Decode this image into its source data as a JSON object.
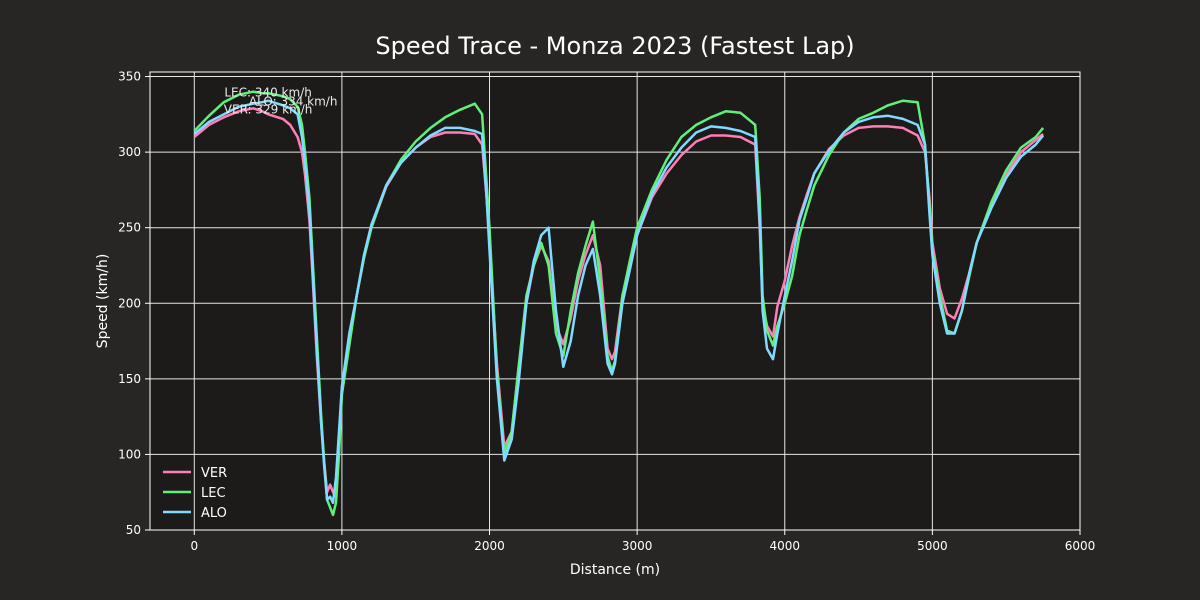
{
  "chart_data": {
    "type": "line",
    "title": "Speed Trace - Monza 2023 (Fastest Lap)",
    "xlabel": "Distance (m)",
    "ylabel": "Speed (km/h)",
    "xlim": [
      -300,
      6000
    ],
    "ylim": [
      50,
      353
    ],
    "xticks": [
      0,
      1000,
      2000,
      3000,
      4000,
      5000,
      6000
    ],
    "yticks": [
      50,
      100,
      150,
      200,
      250,
      300,
      350
    ],
    "grid": true,
    "legend_position": "lower-left",
    "series": [
      {
        "name": "VER",
        "color": "#ff7eb6",
        "x": [
          0,
          100,
          200,
          300,
          400,
          460,
          500,
          600,
          650,
          700,
          730,
          750,
          780,
          800,
          830,
          860,
          880,
          900,
          920,
          940,
          960,
          980,
          1000,
          1050,
          1100,
          1150,
          1200,
          1300,
          1400,
          1500,
          1600,
          1700,
          1800,
          1900,
          1950,
          1980,
          2000,
          2050,
          2100,
          2150,
          2200,
          2250,
          2300,
          2350,
          2400,
          2450,
          2500,
          2550,
          2600,
          2650,
          2700,
          2750,
          2800,
          2830,
          2850,
          2900,
          2950,
          3000,
          3100,
          3200,
          3300,
          3400,
          3500,
          3600,
          3700,
          3800,
          3830,
          3850,
          3880,
          3920,
          3950,
          4000,
          4050,
          4100,
          4150,
          4200,
          4300,
          4400,
          4500,
          4600,
          4700,
          4800,
          4900,
          4950,
          4980,
          5000,
          5050,
          5100,
          5150,
          5200,
          5250,
          5300,
          5400,
          5500,
          5600,
          5700,
          5750
        ],
        "values": [
          310,
          318,
          323,
          327,
          329,
          327,
          325,
          322,
          318,
          310,
          300,
          285,
          255,
          220,
          165,
          120,
          95,
          75,
          80,
          75,
          72,
          110,
          140,
          175,
          205,
          230,
          250,
          277,
          293,
          303,
          310,
          313,
          313,
          312,
          305,
          270,
          240,
          160,
          105,
          115,
          160,
          200,
          225,
          238,
          228,
          185,
          173,
          190,
          215,
          232,
          245,
          225,
          170,
          163,
          168,
          205,
          225,
          245,
          270,
          286,
          298,
          307,
          311,
          311,
          310,
          305,
          250,
          200,
          185,
          178,
          198,
          215,
          238,
          257,
          272,
          286,
          302,
          311,
          316,
          317,
          317,
          316,
          311,
          300,
          270,
          240,
          210,
          193,
          190,
          203,
          220,
          240,
          265,
          285,
          300,
          308,
          312
        ]
      },
      {
        "name": "LEC",
        "color": "#5ff07a",
        "x": [
          0,
          100,
          200,
          300,
          400,
          460,
          500,
          600,
          650,
          700,
          730,
          750,
          780,
          800,
          830,
          860,
          880,
          900,
          920,
          940,
          960,
          980,
          1000,
          1050,
          1100,
          1150,
          1200,
          1300,
          1400,
          1500,
          1600,
          1700,
          1800,
          1900,
          1950,
          1980,
          2000,
          2050,
          2100,
          2150,
          2200,
          2250,
          2300,
          2350,
          2400,
          2450,
          2500,
          2550,
          2600,
          2650,
          2700,
          2750,
          2800,
          2830,
          2850,
          2900,
          2950,
          3000,
          3100,
          3200,
          3300,
          3400,
          3500,
          3600,
          3700,
          3800,
          3830,
          3850,
          3880,
          3920,
          3950,
          4000,
          4050,
          4100,
          4150,
          4200,
          4300,
          4400,
          4500,
          4600,
          4700,
          4800,
          4900,
          4950,
          4980,
          5000,
          5050,
          5100,
          5150,
          5200,
          5250,
          5300,
          5400,
          5500,
          5600,
          5700,
          5750
        ],
        "values": [
          314,
          324,
          333,
          338,
          340,
          339,
          339,
          337,
          335,
          330,
          318,
          300,
          270,
          232,
          178,
          125,
          95,
          70,
          65,
          60,
          68,
          100,
          140,
          172,
          205,
          230,
          250,
          278,
          295,
          307,
          316,
          323,
          328,
          332,
          325,
          280,
          250,
          155,
          100,
          115,
          160,
          205,
          225,
          240,
          225,
          180,
          165,
          195,
          220,
          238,
          254,
          215,
          165,
          155,
          162,
          205,
          228,
          250,
          275,
          295,
          310,
          318,
          323,
          327,
          326,
          318,
          270,
          205,
          182,
          172,
          185,
          200,
          218,
          245,
          262,
          278,
          298,
          313,
          322,
          326,
          331,
          334,
          333,
          305,
          265,
          235,
          205,
          182,
          180,
          195,
          218,
          240,
          267,
          288,
          303,
          310,
          316
        ]
      },
      {
        "name": "ALO",
        "color": "#7fdbff",
        "x": [
          0,
          100,
          200,
          300,
          400,
          460,
          500,
          600,
          650,
          700,
          730,
          750,
          780,
          800,
          830,
          860,
          880,
          900,
          920,
          940,
          960,
          980,
          1000,
          1050,
          1100,
          1150,
          1200,
          1300,
          1400,
          1500,
          1600,
          1700,
          1800,
          1900,
          1950,
          1980,
          2000,
          2050,
          2100,
          2150,
          2200,
          2250,
          2300,
          2350,
          2400,
          2450,
          2500,
          2550,
          2600,
          2650,
          2700,
          2750,
          2800,
          2830,
          2850,
          2900,
          2950,
          3000,
          3100,
          3200,
          3300,
          3400,
          3500,
          3600,
          3700,
          3800,
          3830,
          3850,
          3880,
          3920,
          3950,
          4000,
          4050,
          4100,
          4150,
          4200,
          4300,
          4400,
          4500,
          4600,
          4700,
          4800,
          4900,
          4950,
          4980,
          5000,
          5050,
          5100,
          5150,
          5200,
          5250,
          5300,
          5400,
          5500,
          5600,
          5700,
          5750
        ],
        "values": [
          312,
          320,
          325,
          330,
          332,
          333,
          334,
          331,
          329,
          325,
          310,
          293,
          262,
          225,
          170,
          120,
          92,
          70,
          72,
          68,
          85,
          115,
          145,
          180,
          205,
          232,
          252,
          278,
          293,
          303,
          311,
          316,
          316,
          314,
          312,
          270,
          235,
          150,
          96,
          110,
          150,
          200,
          228,
          245,
          250,
          195,
          158,
          175,
          205,
          225,
          236,
          205,
          160,
          153,
          160,
          200,
          222,
          245,
          272,
          290,
          303,
          313,
          317,
          316,
          314,
          310,
          255,
          195,
          170,
          163,
          180,
          205,
          228,
          255,
          270,
          286,
          301,
          313,
          320,
          323,
          324,
          322,
          318,
          305,
          260,
          232,
          200,
          180,
          180,
          195,
          220,
          240,
          263,
          283,
          297,
          305,
          311
        ]
      }
    ],
    "annotations": [
      {
        "text": "LEC: 340 km/h",
        "x": 500,
        "y": 340
      },
      {
        "text": "ALO: 334 km/h",
        "x": 670,
        "y": 334
      },
      {
        "text": "VER: 329 km/h",
        "x": 500,
        "y": 329
      }
    ]
  }
}
